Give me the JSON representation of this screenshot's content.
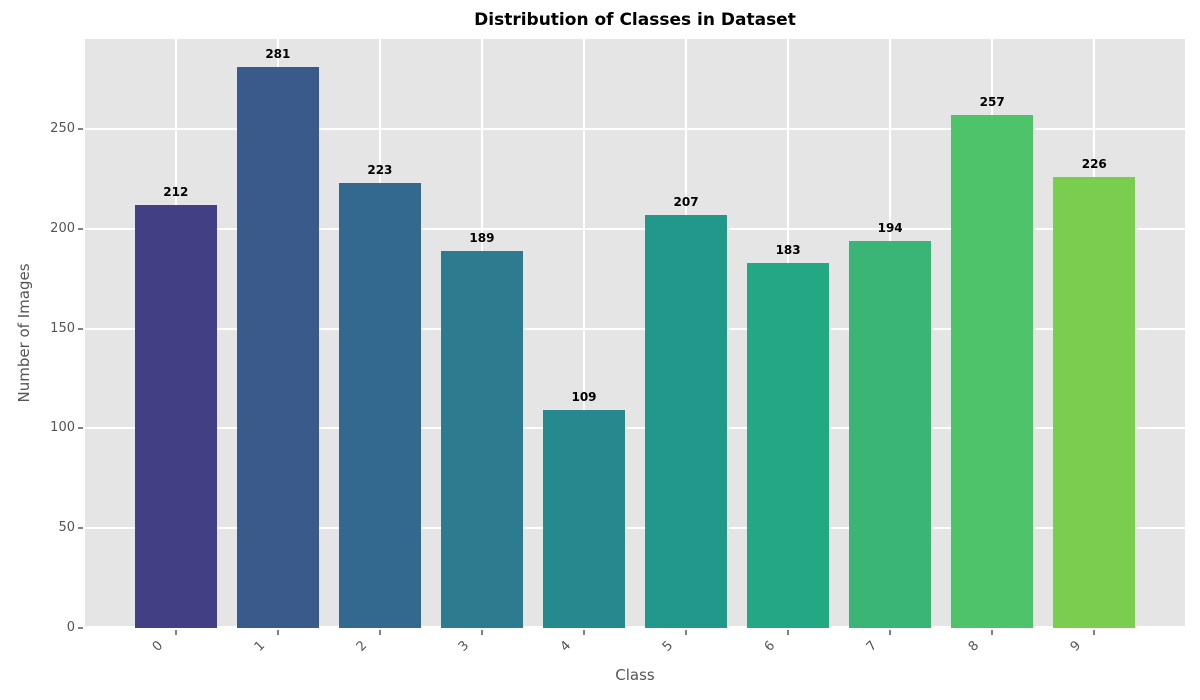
{
  "chart_data": {
    "type": "bar",
    "title": "Distribution of Classes in Dataset",
    "xlabel": "Class",
    "ylabel": "Number of Images",
    "categories": [
      "0",
      "1",
      "2",
      "3",
      "4",
      "5",
      "6",
      "7",
      "8",
      "9"
    ],
    "values": [
      212,
      281,
      223,
      189,
      109,
      207,
      183,
      194,
      257,
      226
    ],
    "bar_colors": [
      "#423f85",
      "#3a5a8c",
      "#33698e",
      "#2c7b8e",
      "#26898d",
      "#21988a",
      "#24a884",
      "#3ab576",
      "#4fc369",
      "#79ce50"
    ],
    "value_labels": [
      "212",
      "281",
      "223",
      "189",
      "109",
      "207",
      "183",
      "194",
      "257",
      "226"
    ],
    "yticks": [
      0,
      50,
      100,
      150,
      200,
      250
    ],
    "ylim": [
      0,
      295
    ],
    "grid": true,
    "legend_position": "none",
    "style": {
      "plot_background": "#e5e5e5",
      "figure_background": "#ffffff",
      "grid_color": "#ffffff",
      "tick_label_color": "#555555",
      "axis_label_color": "#555555",
      "title_color": "#000000",
      "value_label_color": "#000000"
    }
  }
}
